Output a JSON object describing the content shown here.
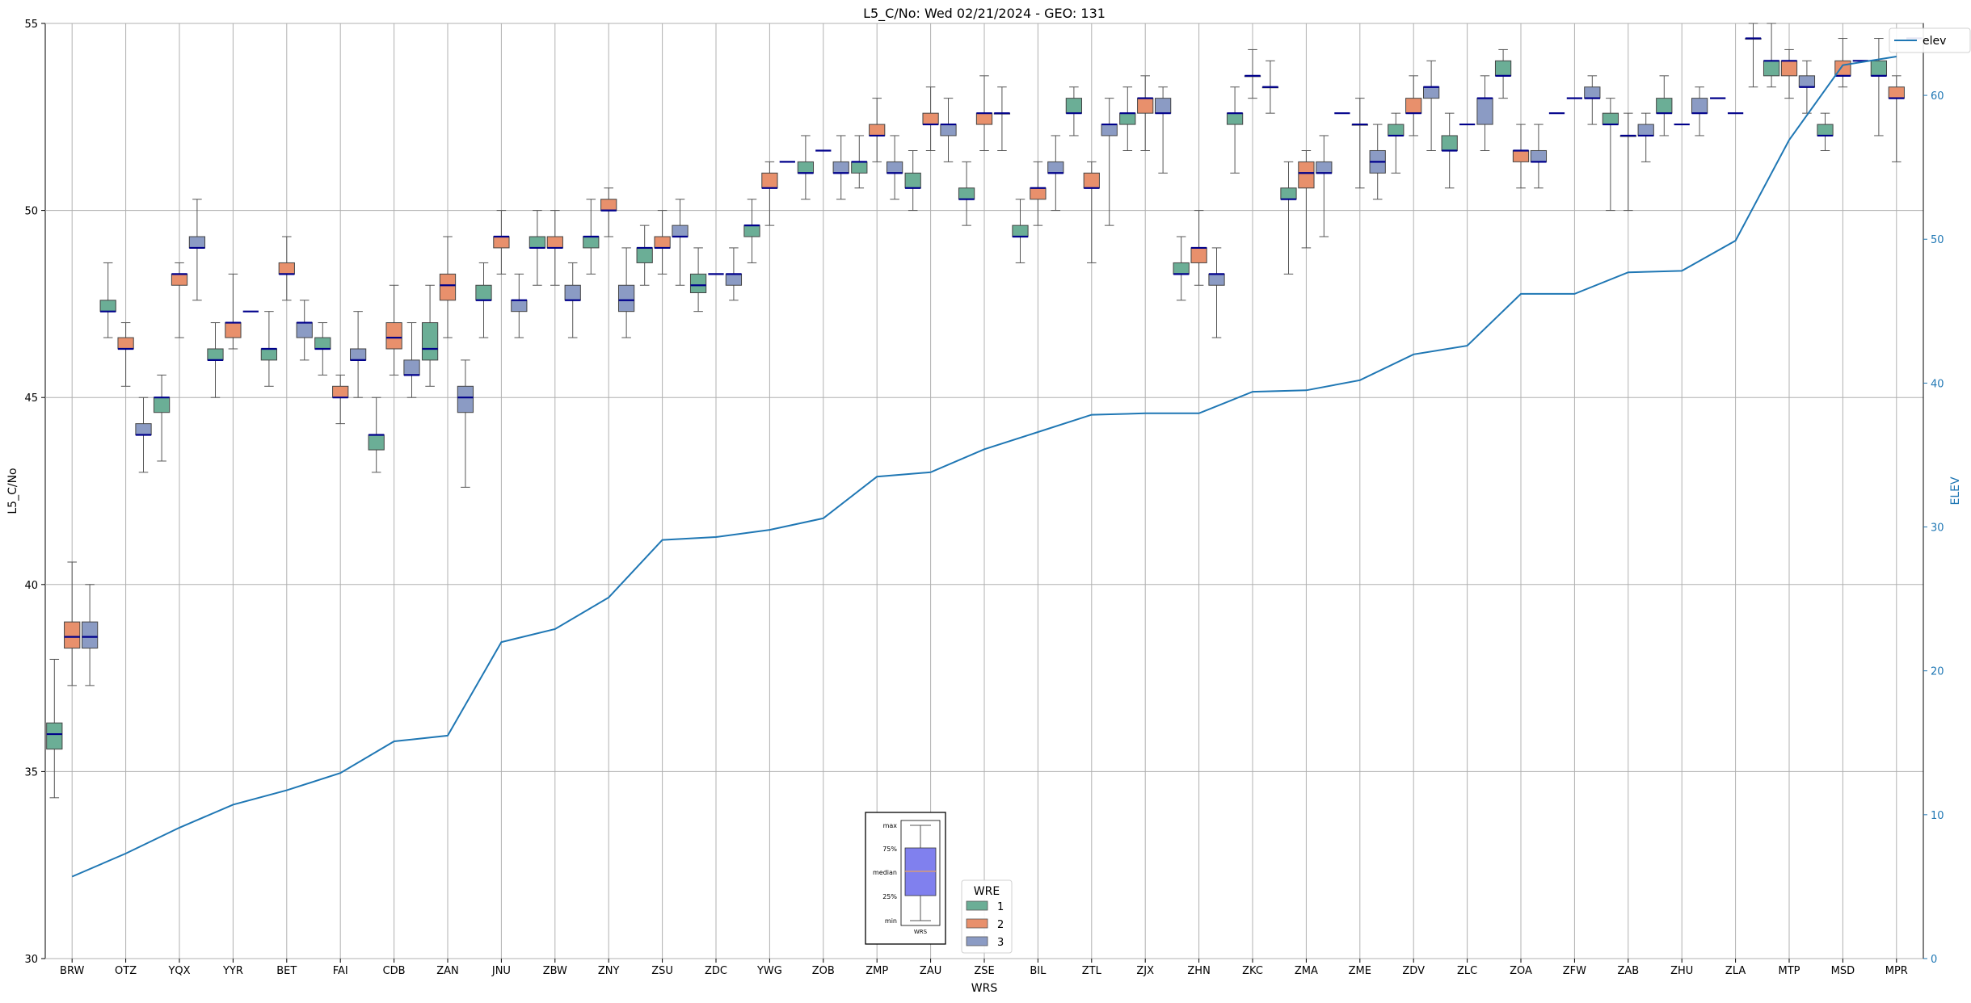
{
  "chart_data": {
    "type": "box",
    "title": "L5_C/No: Wed 02/21/2024 - GEO: 131",
    "xlabel": "WRS",
    "ylabel": "L5_C/No",
    "y2label": "ELEV",
    "ylim": [
      30,
      55
    ],
    "y2lim": [
      0,
      65
    ],
    "yticks": [
      "30",
      "35",
      "40",
      "45",
      "50",
      "55"
    ],
    "y2ticks": [
      "0",
      "10",
      "20",
      "30",
      "40",
      "50",
      "60"
    ],
    "grid": true,
    "categories": [
      "BRW",
      "OTZ",
      "YQX",
      "YYR",
      "BET",
      "FAI",
      "CDB",
      "ZAN",
      "JNU",
      "ZBW",
      "ZNY",
      "ZSU",
      "ZDC",
      "YWG",
      "ZOB",
      "ZMP",
      "ZAU",
      "ZSE",
      "BIL",
      "ZTL",
      "ZJX",
      "ZHN",
      "ZKC",
      "ZMA",
      "ZME",
      "ZDV",
      "ZLC",
      "ZOA",
      "ZFW",
      "ZAB",
      "ZHU",
      "ZLA",
      "MTP",
      "MSD",
      "MPR"
    ],
    "colors": {
      "1": "#6bae96",
      "2": "#e8906c",
      "3": "#8b9bc4",
      "median": "#00008b",
      "elev_line": "#1f77b4",
      "whisker": "#555555",
      "grid": "#b0b0b0"
    },
    "box_series": [
      {
        "name": "1",
        "boxes": [
          [
            34.3,
            35.6,
            36.0,
            36.3,
            38.0
          ],
          [
            46.6,
            47.3,
            47.3,
            47.6,
            48.6
          ],
          [
            43.3,
            44.6,
            45.0,
            45.0,
            45.6
          ],
          [
            45.0,
            46.0,
            46.0,
            46.3,
            47.0
          ],
          [
            45.3,
            46.0,
            46.3,
            46.3,
            47.3
          ],
          [
            45.6,
            46.3,
            46.3,
            46.6,
            47.0
          ],
          [
            43.0,
            43.6,
            44.0,
            44.0,
            45.0
          ],
          [
            45.3,
            46.0,
            46.3,
            47.0,
            48.0
          ],
          [
            46.6,
            47.6,
            47.6,
            48.0,
            48.6
          ],
          [
            48.0,
            49.0,
            49.0,
            49.3,
            50.0
          ],
          [
            48.3,
            49.0,
            49.3,
            49.3,
            50.3
          ],
          [
            48.0,
            48.6,
            49.0,
            49.0,
            49.6
          ],
          [
            47.3,
            47.8,
            48.0,
            48.3,
            49.0
          ],
          [
            48.6,
            49.3,
            49.6,
            49.6,
            50.3
          ],
          [
            50.3,
            51.0,
            51.0,
            51.3,
            52.0
          ],
          [
            50.6,
            51.0,
            51.3,
            51.3,
            52.0
          ],
          [
            50.0,
            50.6,
            50.6,
            51.0,
            51.6
          ],
          [
            49.6,
            50.3,
            50.3,
            50.6,
            51.3
          ],
          [
            48.6,
            49.3,
            49.3,
            49.6,
            50.3
          ],
          [
            52.0,
            52.6,
            52.6,
            53.0,
            53.3
          ],
          [
            51.6,
            52.3,
            52.6,
            52.6,
            53.3
          ],
          [
            47.6,
            48.3,
            48.3,
            48.6,
            49.3
          ],
          [
            51.0,
            52.3,
            52.6,
            52.6,
            53.3
          ],
          [
            48.3,
            50.3,
            50.3,
            50.6,
            51.3
          ],
          [
            null,
            null,
            52.6,
            null,
            null
          ],
          [
            51.0,
            52.0,
            52.0,
            52.3,
            52.6
          ],
          [
            50.6,
            51.6,
            51.6,
            52.0,
            52.6
          ],
          [
            53.0,
            53.6,
            53.6,
            54.0,
            54.3
          ],
          [
            null,
            null,
            52.6,
            null,
            null
          ],
          [
            50.0,
            52.3,
            52.3,
            52.6,
            53.0
          ],
          [
            52.0,
            52.6,
            52.6,
            53.0,
            53.6
          ],
          [
            null,
            null,
            53.0,
            null,
            null
          ],
          [
            53.3,
            53.6,
            54.0,
            54.0,
            55.0
          ],
          [
            51.6,
            52.0,
            52.0,
            52.3,
            52.6
          ],
          [
            52.0,
            53.6,
            53.6,
            54.0,
            54.6
          ]
        ]
      },
      {
        "name": "2",
        "boxes": [
          [
            37.3,
            38.3,
            38.6,
            39.0,
            40.6
          ],
          [
            45.3,
            46.3,
            46.3,
            46.6,
            47.0
          ],
          [
            46.6,
            48.0,
            48.3,
            48.3,
            48.6
          ],
          [
            46.3,
            46.6,
            47.0,
            47.0,
            48.3
          ],
          [
            47.6,
            48.3,
            48.3,
            48.6,
            49.3
          ],
          [
            44.3,
            45.0,
            45.0,
            45.3,
            45.6
          ],
          [
            45.6,
            46.3,
            46.6,
            47.0,
            48.0
          ],
          [
            46.6,
            47.6,
            48.0,
            48.3,
            49.3
          ],
          [
            48.3,
            49.0,
            49.3,
            49.3,
            50.0
          ],
          [
            48.0,
            49.0,
            49.0,
            49.3,
            50.0
          ],
          [
            49.3,
            50.0,
            50.0,
            50.3,
            50.6
          ],
          [
            48.3,
            49.0,
            49.0,
            49.3,
            50.0
          ],
          [
            null,
            null,
            48.3,
            null,
            null
          ],
          [
            49.6,
            50.6,
            50.6,
            51.0,
            51.3
          ],
          [
            null,
            null,
            51.6,
            null,
            null
          ],
          [
            51.3,
            52.0,
            52.0,
            52.3,
            53.0
          ],
          [
            51.6,
            52.3,
            52.3,
            52.6,
            53.3
          ],
          [
            51.6,
            52.3,
            52.6,
            52.6,
            53.6
          ],
          [
            49.6,
            50.3,
            50.6,
            50.6,
            51.3
          ],
          [
            48.6,
            50.6,
            50.6,
            51.0,
            51.3
          ],
          [
            51.6,
            52.6,
            53.0,
            53.0,
            53.6
          ],
          [
            48.0,
            48.6,
            49.0,
            49.0,
            50.0
          ],
          [
            53.0,
            53.6,
            53.6,
            null,
            54.3
          ],
          [
            49.0,
            50.6,
            51.0,
            51.3,
            51.6
          ],
          [
            50.6,
            52.3,
            52.3,
            null,
            53.0
          ],
          [
            52.0,
            52.6,
            52.6,
            53.0,
            53.6
          ],
          [
            null,
            null,
            52.3,
            null,
            null
          ],
          [
            50.6,
            51.3,
            51.6,
            51.6,
            52.3
          ],
          [
            null,
            null,
            53.0,
            null,
            null
          ],
          [
            50.0,
            52.0,
            52.0,
            null,
            52.6
          ],
          [
            null,
            null,
            52.3,
            null,
            null
          ],
          [
            null,
            null,
            52.6,
            null,
            null
          ],
          [
            53.0,
            53.6,
            54.0,
            54.0,
            54.3
          ],
          [
            53.3,
            53.6,
            53.6,
            54.0,
            54.6
          ],
          [
            51.3,
            53.0,
            53.0,
            53.3,
            53.6
          ]
        ]
      },
      {
        "name": "3",
        "boxes": [
          [
            37.3,
            38.3,
            38.6,
            39.0,
            40.0
          ],
          [
            43.0,
            44.0,
            44.0,
            44.3,
            45.0
          ],
          [
            47.6,
            49.0,
            49.0,
            49.3,
            50.3
          ],
          [
            null,
            null,
            47.3,
            null,
            null
          ],
          [
            46.0,
            46.6,
            47.0,
            47.0,
            47.6
          ],
          [
            45.0,
            46.0,
            46.0,
            46.3,
            47.3
          ],
          [
            45.0,
            45.6,
            45.6,
            46.0,
            47.0
          ],
          [
            42.6,
            44.6,
            45.0,
            45.3,
            46.0
          ],
          [
            46.6,
            47.3,
            47.6,
            47.6,
            48.3
          ],
          [
            46.6,
            47.6,
            47.6,
            48.0,
            48.6
          ],
          [
            46.6,
            47.3,
            47.6,
            48.0,
            49.0
          ],
          [
            48.0,
            49.3,
            49.3,
            49.6,
            50.3
          ],
          [
            47.6,
            48.0,
            48.3,
            null,
            49.0
          ],
          [
            null,
            null,
            51.3,
            null,
            null
          ],
          [
            50.3,
            51.0,
            51.0,
            51.3,
            52.0
          ],
          [
            50.3,
            51.0,
            51.0,
            51.3,
            52.0
          ],
          [
            51.3,
            52.0,
            52.3,
            52.3,
            53.0
          ],
          [
            51.6,
            52.6,
            52.6,
            null,
            53.3
          ],
          [
            50.0,
            51.0,
            51.0,
            51.3,
            52.0
          ],
          [
            49.6,
            52.0,
            52.3,
            52.3,
            53.0
          ],
          [
            51.0,
            52.6,
            52.6,
            53.0,
            53.3
          ],
          [
            46.6,
            48.0,
            48.3,
            48.3,
            49.0
          ],
          [
            52.6,
            53.3,
            53.3,
            null,
            54.0
          ],
          [
            49.3,
            51.0,
            51.0,
            51.3,
            52.0
          ],
          [
            50.3,
            51.0,
            51.3,
            51.6,
            52.3
          ],
          [
            51.6,
            53.0,
            53.3,
            53.3,
            54.0
          ],
          [
            51.6,
            52.3,
            53.0,
            53.0,
            53.6
          ],
          [
            50.6,
            51.3,
            51.3,
            51.6,
            52.3
          ],
          [
            52.3,
            53.0,
            53.0,
            53.3,
            53.6
          ],
          [
            51.3,
            52.0,
            52.0,
            52.3,
            52.6
          ],
          [
            52.0,
            52.6,
            52.6,
            53.0,
            53.3
          ],
          [
            53.3,
            54.6,
            54.6,
            null,
            55.0
          ],
          [
            52.6,
            53.3,
            53.3,
            53.6,
            54.0
          ],
          [
            null,
            null,
            54.0,
            null,
            null
          ],
          [
            null,
            null,
            54.6,
            null,
            null
          ]
        ]
      }
    ],
    "line_series": {
      "name": "elev",
      "axis": "right",
      "values": [
        5.7,
        7.3,
        9.1,
        10.7,
        11.7,
        12.9,
        15.1,
        15.5,
        22.0,
        22.9,
        25.1,
        29.1,
        29.3,
        29.8,
        30.6,
        33.5,
        33.8,
        35.4,
        36.6,
        37.8,
        37.9,
        37.9,
        39.4,
        39.5,
        40.2,
        42.0,
        42.6,
        46.2,
        46.2,
        47.7,
        47.8,
        49.9,
        56.9,
        62.1,
        62.7
      ]
    },
    "legends": [
      {
        "location": "top-right",
        "entries": [
          "elev"
        ]
      },
      {
        "location": "bottom-center",
        "title": "WRE",
        "entries": [
          "1",
          "2",
          "3"
        ]
      }
    ],
    "key_inset": {
      "labels": [
        "max",
        "75%",
        "median",
        "25%",
        "min"
      ],
      "caption": "WRS"
    }
  }
}
